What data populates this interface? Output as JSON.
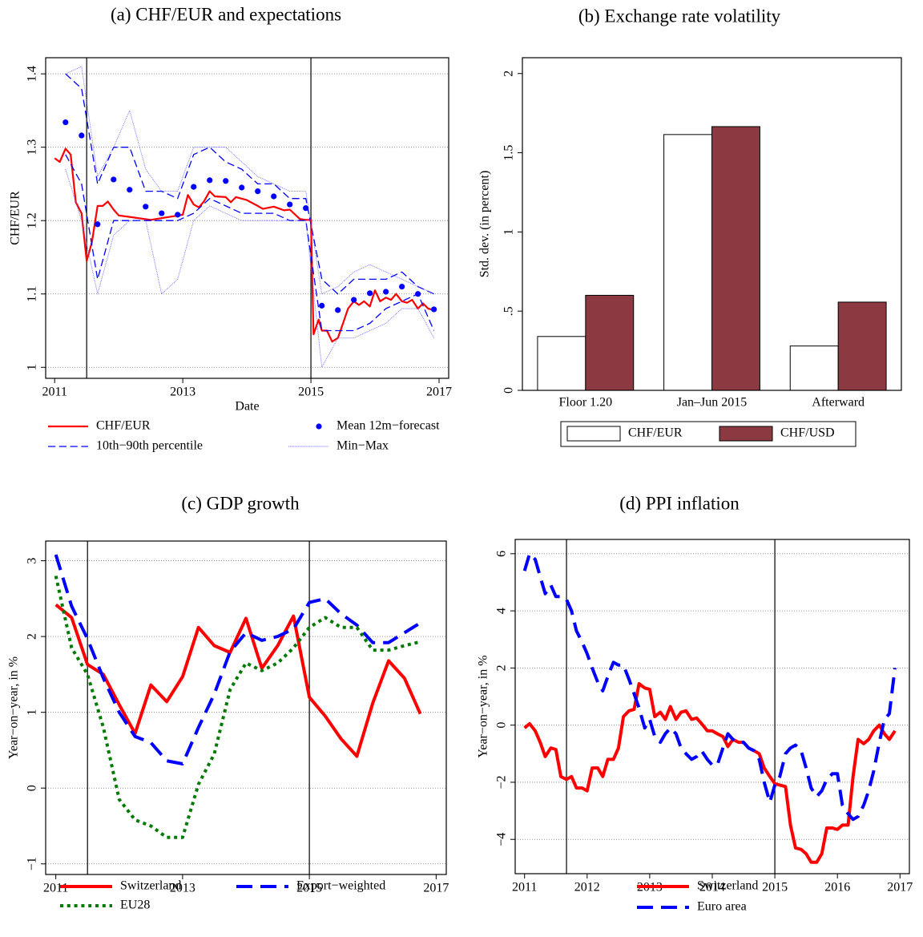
{
  "chart_data": [
    {
      "type": "line",
      "title": "(a) CHF/EUR and expectations",
      "xlabel": "Date",
      "ylabel": "CHF/EUR",
      "xlim": [
        2010.86,
        2017.15
      ],
      "xticks": [
        2011,
        2013,
        2015,
        2017
      ],
      "ylim": [
        0.985,
        1.422
      ],
      "yticks": [
        1,
        1.1,
        1.2,
        1.3,
        1.4
      ],
      "grid": true,
      "vlines": [
        2011.5,
        2015.0
      ],
      "x": [
        2011.17,
        2011.42,
        2011.67,
        2011.92,
        2012.17,
        2012.42,
        2012.67,
        2012.92,
        2013.17,
        2013.42,
        2013.67,
        2013.92,
        2014.17,
        2014.42,
        2014.67,
        2014.92,
        2015.17,
        2015.42,
        2015.67,
        2015.92,
        2016.17,
        2016.42,
        2016.67,
        2016.92
      ],
      "series": [
        {
          "name": "CHF/EUR",
          "color": "#ff0000",
          "style": "solid",
          "x": [
            2011.0,
            2011.08,
            2011.17,
            2011.25,
            2011.33,
            2011.42,
            2011.5,
            2011.58,
            2011.67,
            2011.75,
            2011.83,
            2011.92,
            2012.0,
            2012.17,
            2012.5,
            2013.0,
            2013.08,
            2013.17,
            2013.25,
            2013.33,
            2013.42,
            2013.5,
            2013.67,
            2013.75,
            2013.83,
            2014.0,
            2014.17,
            2014.25,
            2014.42,
            2014.58,
            2014.67,
            2014.83,
            2014.92,
            2015.0,
            2015.04,
            2015.12,
            2015.17,
            2015.25,
            2015.33,
            2015.42,
            2015.5,
            2015.58,
            2015.67,
            2015.75,
            2015.83,
            2015.92,
            2016.0,
            2016.08,
            2016.17,
            2016.25,
            2016.33,
            2016.42,
            2016.5,
            2016.58,
            2016.67,
            2016.75,
            2016.83,
            2016.92
          ],
          "values": [
            1.285,
            1.28,
            1.298,
            1.29,
            1.225,
            1.21,
            1.145,
            1.17,
            1.22,
            1.22,
            1.226,
            1.215,
            1.207,
            1.205,
            1.201,
            1.208,
            1.235,
            1.222,
            1.218,
            1.226,
            1.24,
            1.233,
            1.232,
            1.225,
            1.232,
            1.228,
            1.22,
            1.216,
            1.219,
            1.214,
            1.215,
            1.202,
            1.201,
            1.201,
            1.045,
            1.065,
            1.05,
            1.05,
            1.035,
            1.04,
            1.06,
            1.08,
            1.09,
            1.085,
            1.09,
            1.083,
            1.105,
            1.09,
            1.095,
            1.092,
            1.1,
            1.09,
            1.088,
            1.092,
            1.08,
            1.087,
            1.08,
            1.078
          ]
        },
        {
          "name": "Mean 12m−forecast",
          "color": "#0000ff",
          "style": "dots",
          "values": [
            1.334,
            1.316,
            1.195,
            1.256,
            1.242,
            1.219,
            1.21,
            1.208,
            1.246,
            1.255,
            1.254,
            1.245,
            1.24,
            1.233,
            1.222,
            1.217,
            1.084,
            1.078,
            1.092,
            1.101,
            1.103,
            1.11,
            1.1,
            1.079
          ]
        },
        {
          "name": "10th−90th percentile",
          "color": "#0000ff",
          "style": "dashed",
          "lower": [
            1.29,
            1.25,
            1.12,
            1.2,
            1.2,
            1.2,
            1.2,
            1.2,
            1.21,
            1.23,
            1.22,
            1.21,
            1.21,
            1.21,
            1.2,
            1.2,
            1.05,
            1.05,
            1.05,
            1.06,
            1.08,
            1.09,
            1.1,
            1.05
          ],
          "upper": [
            1.4,
            1.38,
            1.25,
            1.3,
            1.3,
            1.24,
            1.24,
            1.23,
            1.29,
            1.3,
            1.28,
            1.27,
            1.25,
            1.25,
            1.23,
            1.23,
            1.12,
            1.1,
            1.12,
            1.12,
            1.12,
            1.13,
            1.11,
            1.1
          ]
        },
        {
          "name": "Min−Max",
          "color": "#5a5aff",
          "style": "dotted",
          "lower": [
            1.27,
            1.2,
            1.1,
            1.18,
            1.2,
            1.2,
            1.1,
            1.12,
            1.2,
            1.22,
            1.21,
            1.2,
            1.2,
            1.2,
            1.2,
            1.2,
            1.0,
            1.04,
            1.04,
            1.05,
            1.06,
            1.08,
            1.08,
            1.04
          ],
          "upper": [
            1.4,
            1.41,
            1.26,
            1.3,
            1.35,
            1.27,
            1.24,
            1.24,
            1.3,
            1.3,
            1.3,
            1.28,
            1.26,
            1.25,
            1.24,
            1.24,
            1.1,
            1.11,
            1.13,
            1.14,
            1.13,
            1.12,
            1.11,
            1.1
          ]
        }
      ]
    },
    {
      "type": "bar",
      "title": "(b) Exchange rate volatility",
      "ylabel": "Std. dev. (in percent)",
      "ylim": [
        0,
        2.1
      ],
      "yticks": [
        0,
        {
          "value": 0.5,
          "label": ".5"
        },
        1,
        1.5,
        2
      ],
      "grid": false,
      "categories": [
        "Floor 1.20",
        "Jan–Jun 2015",
        "Afterward"
      ],
      "series": [
        {
          "name": "CHF/EUR",
          "color": "#ffffff",
          "values": [
            0.34,
            1.615,
            0.28
          ]
        },
        {
          "name": "CHF/USD",
          "color": "#8c3a42",
          "values": [
            0.6,
            1.665,
            0.557
          ]
        }
      ]
    },
    {
      "type": "line",
      "title": "(c) GDP growth",
      "ylabel": "Year−on−year, in %",
      "xlim": [
        2010.84,
        2017.16
      ],
      "xticks": [
        2011,
        2013,
        2015,
        2017
      ],
      "ylim": [
        -1.14,
        3.26
      ],
      "yticks": [
        {
          "value": -1,
          "label": "−1"
        },
        0,
        1,
        2,
        3
      ],
      "grid": true,
      "vlines": [
        2011.5,
        2015.0
      ],
      "x": [
        2011.0,
        2011.25,
        2011.5,
        2011.75,
        2012.0,
        2012.25,
        2012.5,
        2012.75,
        2013.0,
        2013.25,
        2013.5,
        2013.75,
        2014.0,
        2014.25,
        2014.5,
        2014.75,
        2015.0,
        2015.25,
        2015.5,
        2015.75,
        2016.0,
        2016.25,
        2016.5,
        2016.75
      ],
      "series": [
        {
          "name": "Switzerland",
          "color": "#ff0000",
          "style": "solid",
          "values": [
            2.42,
            2.25,
            1.63,
            1.5,
            1.1,
            0.72,
            1.36,
            1.14,
            1.47,
            2.12,
            1.88,
            1.79,
            2.24,
            1.58,
            1.88,
            2.27,
            1.2,
            0.95,
            0.65,
            0.42,
            1.12,
            1.68,
            1.45,
            0.98
          ]
        },
        {
          "name": "Export−weighted",
          "color": "#0000ff",
          "style": "dashed",
          "values": [
            3.08,
            2.4,
            1.97,
            1.45,
            1.0,
            0.68,
            0.6,
            0.36,
            0.32,
            0.8,
            1.24,
            1.8,
            2.05,
            1.95,
            2.0,
            2.1,
            2.45,
            2.5,
            2.3,
            2.15,
            1.92,
            1.92,
            2.05,
            2.18
          ]
        },
        {
          "name": "EU28",
          "color": "#007a00",
          "style": "dotted",
          "values": [
            2.8,
            1.85,
            1.5,
            0.8,
            -0.15,
            -0.42,
            -0.5,
            -0.65,
            -0.65,
            0.05,
            0.45,
            1.3,
            1.65,
            1.55,
            1.65,
            1.85,
            2.12,
            2.25,
            2.12,
            2.12,
            1.82,
            1.82,
            1.88,
            1.93
          ]
        }
      ]
    },
    {
      "type": "line",
      "title": "(d) PPI inflation",
      "ylabel": "Year−on−year, in %",
      "xlim": [
        2010.85,
        2017.15
      ],
      "xticks": [
        2011,
        2012,
        2013,
        2014,
        2015,
        2016,
        2017
      ],
      "ylim": [
        -5.2,
        6.5
      ],
      "yticks": [
        {
          "value": -4,
          "label": "−4"
        },
        {
          "value": -2,
          "label": "−2"
        },
        0,
        2,
        4,
        6
      ],
      "grid": true,
      "vlines": [
        2011.67,
        2015.0
      ],
      "x": [
        2011.0,
        2011.08,
        2011.17,
        2011.25,
        2011.33,
        2011.42,
        2011.5,
        2011.58,
        2011.67,
        2011.75,
        2011.83,
        2011.92,
        2012.0,
        2012.08,
        2012.17,
        2012.25,
        2012.33,
        2012.42,
        2012.5,
        2012.58,
        2012.67,
        2012.75,
        2012.83,
        2012.92,
        2013.0,
        2013.08,
        2013.17,
        2013.25,
        2013.33,
        2013.42,
        2013.5,
        2013.58,
        2013.67,
        2013.75,
        2013.83,
        2013.92,
        2014.0,
        2014.08,
        2014.17,
        2014.25,
        2014.33,
        2014.42,
        2014.5,
        2014.58,
        2014.67,
        2014.75,
        2014.83,
        2014.92,
        2015.0,
        2015.08,
        2015.17,
        2015.25,
        2015.33,
        2015.42,
        2015.5,
        2015.58,
        2015.67,
        2015.75,
        2015.83,
        2015.92,
        2016.0,
        2016.08,
        2016.17,
        2016.25,
        2016.33,
        2016.42,
        2016.5,
        2016.58,
        2016.67,
        2016.75,
        2016.83,
        2016.92
      ],
      "series": [
        {
          "name": "Switzerland",
          "color": "#ff0000",
          "style": "solid",
          "values": [
            -0.1,
            0.05,
            -0.2,
            -0.6,
            -1.1,
            -0.8,
            -0.85,
            -1.8,
            -1.9,
            -1.8,
            -2.2,
            -2.2,
            -2.3,
            -1.5,
            -1.5,
            -1.8,
            -1.2,
            -1.2,
            -0.8,
            0.3,
            0.5,
            0.55,
            1.45,
            1.3,
            1.25,
            0.3,
            0.45,
            0.2,
            0.65,
            0.2,
            0.45,
            0.5,
            0.2,
            0.25,
            0.05,
            -0.2,
            -0.2,
            -0.3,
            -0.4,
            -0.75,
            -0.5,
            -0.6,
            -0.6,
            -0.8,
            -0.9,
            -1.0,
            -1.5,
            -1.8,
            -2.05,
            -2.1,
            -2.15,
            -3.5,
            -4.3,
            -4.35,
            -4.5,
            -4.8,
            -4.8,
            -4.5,
            -3.6,
            -3.6,
            -3.65,
            -3.5,
            -3.5,
            -1.8,
            -0.5,
            -0.65,
            -0.5,
            -0.2,
            0.0,
            -0.3,
            -0.5,
            -0.2
          ]
        },
        {
          "name": "Euro area",
          "color": "#0000ff",
          "style": "dashed",
          "values": [
            5.4,
            6.0,
            5.8,
            5.2,
            4.6,
            4.9,
            4.5,
            4.5,
            4.4,
            4.0,
            3.3,
            2.9,
            2.5,
            2.0,
            1.5,
            1.2,
            1.7,
            2.2,
            2.1,
            2.1,
            1.6,
            1.1,
            0.6,
            -0.1,
            0.2,
            -0.4,
            -0.6,
            -0.3,
            -0.1,
            -0.3,
            -0.8,
            -1.0,
            -1.2,
            -1.1,
            -0.9,
            -1.2,
            -1.4,
            -1.4,
            -0.8,
            -0.3,
            -0.5,
            -0.6,
            -0.6,
            -0.8,
            -0.9,
            -1.2,
            -2.0,
            -2.7,
            -2.1,
            -1.8,
            -1.0,
            -0.8,
            -0.7,
            -0.9,
            -1.5,
            -2.2,
            -2.5,
            -2.3,
            -1.9,
            -1.7,
            -1.7,
            -2.8,
            -3.1,
            -3.3,
            -3.2,
            -2.8,
            -2.3,
            -1.6,
            -0.6,
            0.2,
            0.4,
            2.0
          ]
        }
      ]
    }
  ]
}
